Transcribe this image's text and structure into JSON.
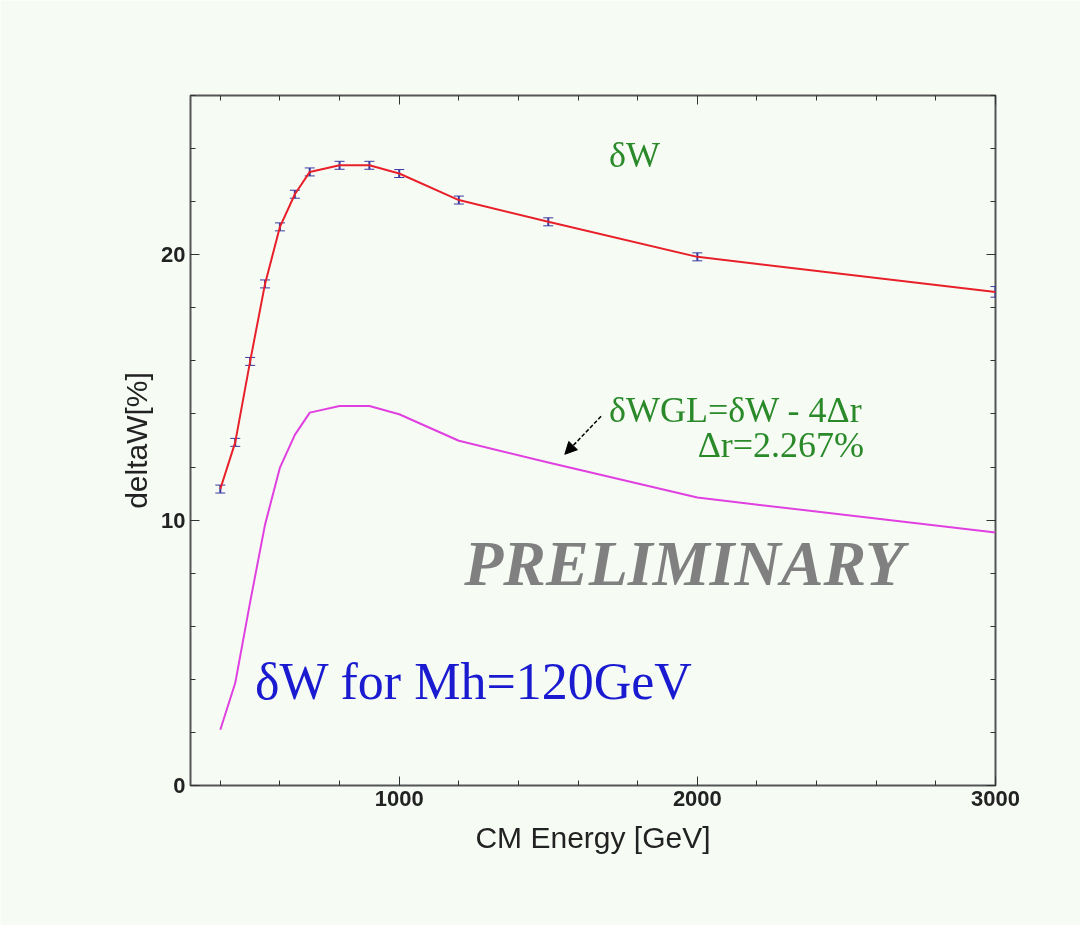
{
  "chart_data": {
    "type": "line",
    "xlabel": "CM Energy [GeV]",
    "ylabel": "deltaW[%]",
    "x": [
      400,
      450,
      500,
      550,
      600,
      650,
      700,
      800,
      900,
      1000,
      1200,
      1500,
      2000,
      3000
    ],
    "series": [
      {
        "color": "#e8202a",
        "values": [
          11.17,
          12.93,
          15.98,
          18.9,
          21.05,
          22.28,
          23.12,
          23.37,
          23.37,
          23.06,
          22.06,
          21.24,
          19.92,
          18.6
        ],
        "errors": [
          0.15,
          0.15,
          0.15,
          0.15,
          0.15,
          0.15,
          0.15,
          0.15,
          0.15,
          0.15,
          0.15,
          0.15,
          0.15,
          0.2
        ]
      },
      {
        "color": "#e040e0",
        "marker": "none",
        "values": [
          2.1,
          3.86,
          6.91,
          9.83,
          11.98,
          13.21,
          14.05,
          14.3,
          14.3,
          13.99,
          12.99,
          12.17,
          10.85,
          9.53
        ]
      }
    ],
    "xlim": [
      300,
      3000
    ],
    "ylim": [
      0,
      26
    ],
    "xticks": [
      1000,
      2000,
      3000
    ],
    "yticks": [
      0,
      10,
      20
    ],
    "grid": false,
    "annotations": [
      "δW",
      "δWGL=δW - 4Δr",
      "Δr=2.267%",
      "PRELIMINARY",
      "δW  for Mh=120GeV"
    ]
  }
}
